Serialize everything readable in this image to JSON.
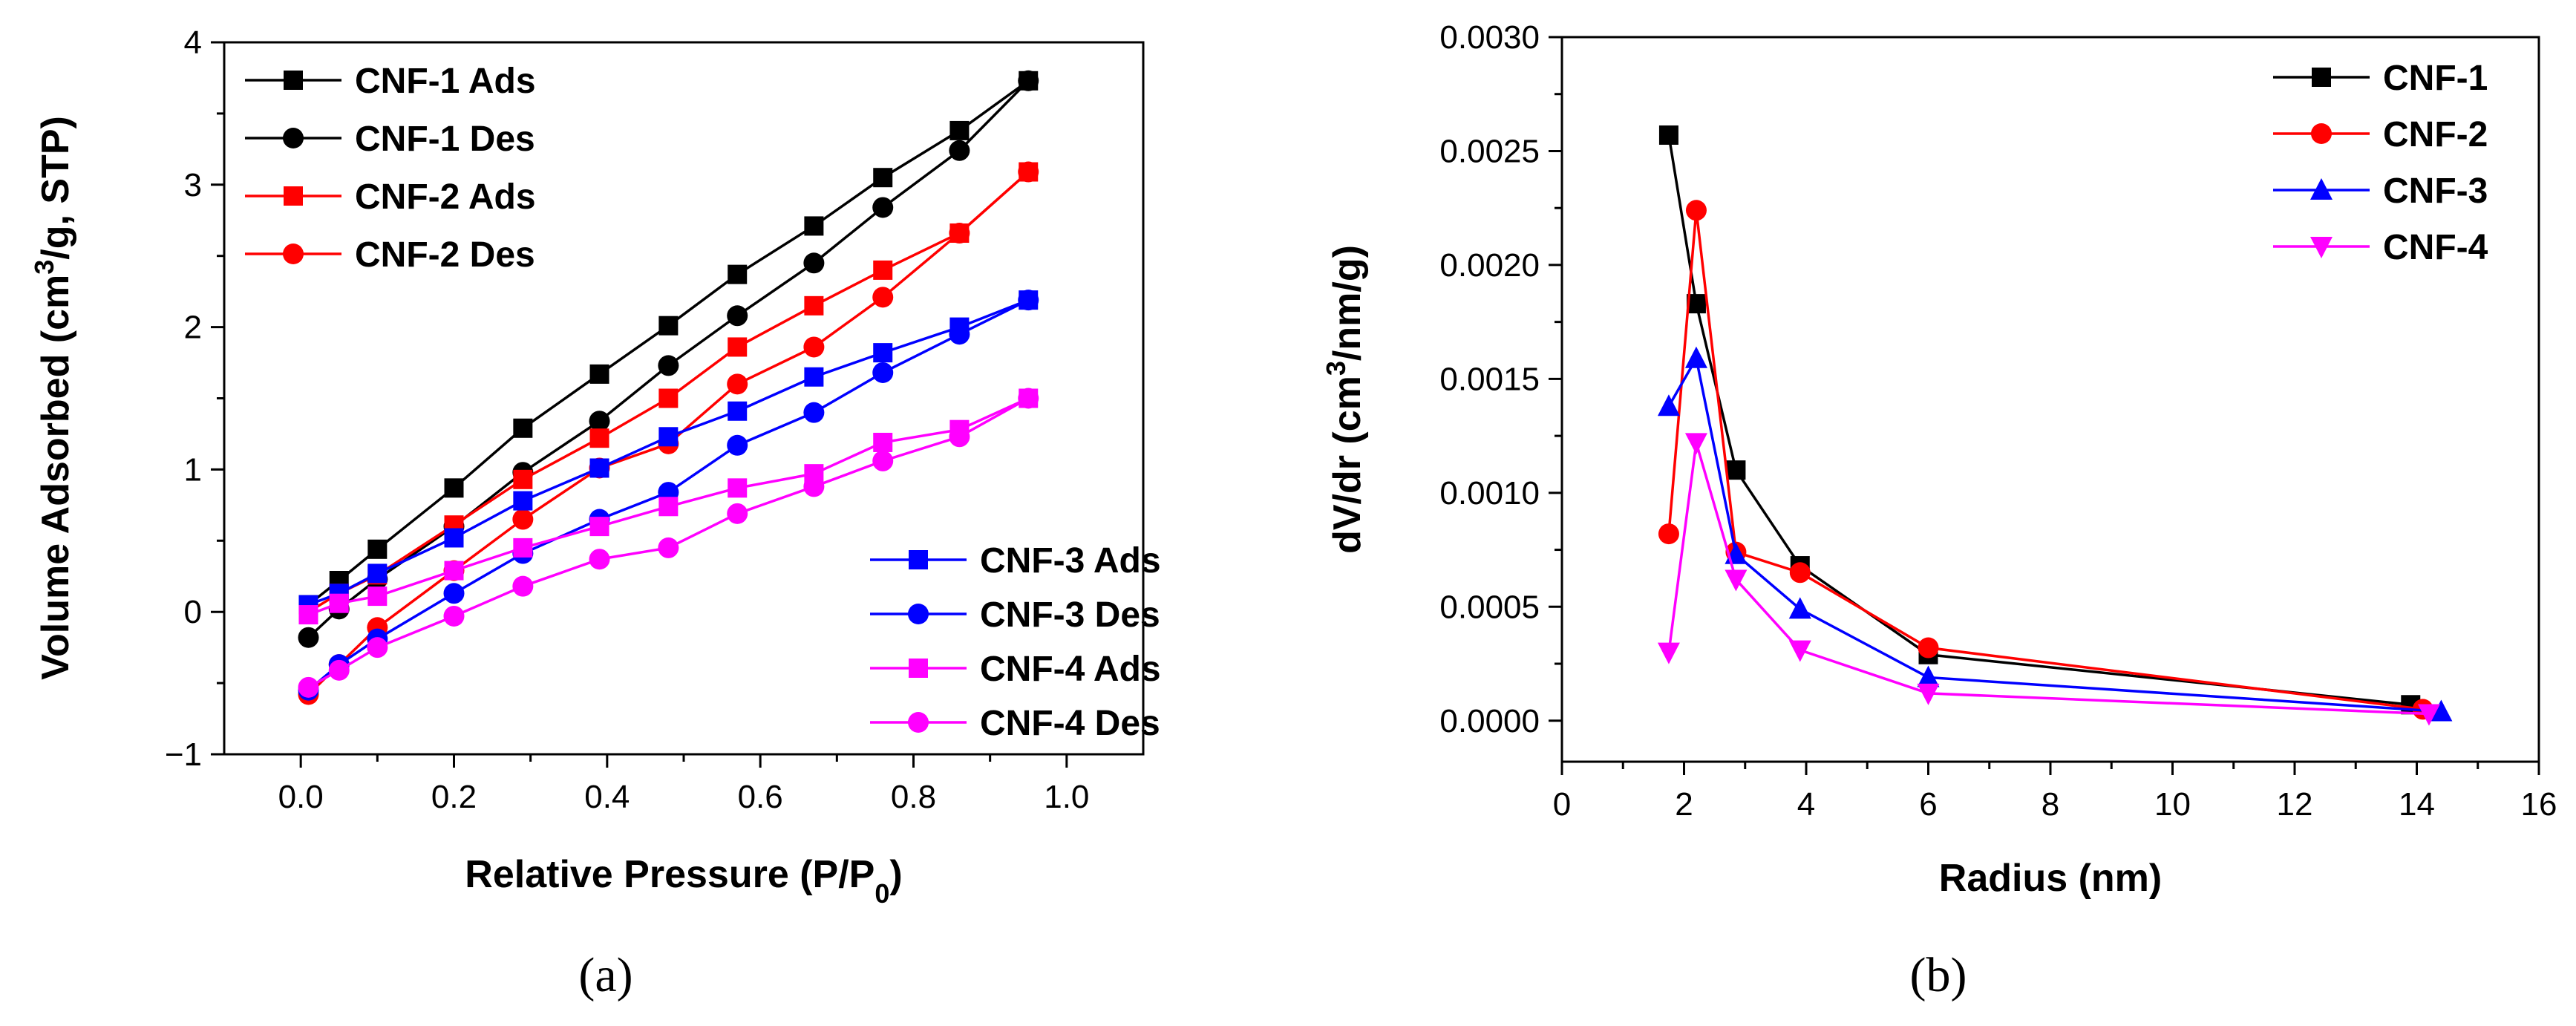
{
  "chart_data": [
    {
      "panel": "a",
      "caption": "(a)",
      "type": "line",
      "xlabel": "Relative Pressure (P/P0)",
      "ylabel": "Volume Adsorbed (cm3/g, STP)",
      "xlim": [
        -0.1,
        1.1
      ],
      "ylim": [
        -1,
        4
      ],
      "xticks": [
        0.0,
        0.2,
        0.4,
        0.6,
        0.8,
        1.0
      ],
      "xtick_labels": [
        "0.0",
        "0.2",
        "0.4",
        "0.6",
        "0.8",
        "1.0"
      ],
      "yticks": [
        -1,
        0,
        1,
        2,
        3,
        4
      ],
      "ytick_labels": [
        "−1",
        "0",
        "1",
        "2",
        "3",
        "4"
      ],
      "series": [
        {
          "name": "CNF-1 Ads",
          "color": "#000000",
          "marker": "square",
          "x": [
            0.01,
            0.05,
            0.1,
            0.2,
            0.29,
            0.39,
            0.48,
            0.57,
            0.67,
            0.76,
            0.86,
            0.95
          ],
          "y": [
            0.05,
            0.22,
            0.44,
            0.87,
            1.29,
            1.67,
            2.01,
            2.37,
            2.71,
            3.05,
            3.38,
            3.73
          ]
        },
        {
          "name": "CNF-1 Des",
          "color": "#000000",
          "marker": "circle",
          "x": [
            0.01,
            0.05,
            0.1,
            0.2,
            0.29,
            0.39,
            0.48,
            0.57,
            0.67,
            0.76,
            0.86,
            0.95
          ],
          "y": [
            -0.18,
            0.02,
            0.23,
            0.6,
            0.98,
            1.34,
            1.73,
            2.08,
            2.45,
            2.84,
            3.24,
            3.73
          ]
        },
        {
          "name": "CNF-2 Ads",
          "color": "#ff0000",
          "marker": "square",
          "x": [
            0.01,
            0.05,
            0.1,
            0.2,
            0.29,
            0.39,
            0.48,
            0.57,
            0.67,
            0.76,
            0.86,
            0.95
          ],
          "y": [
            0.0,
            0.13,
            0.26,
            0.61,
            0.93,
            1.22,
            1.5,
            1.86,
            2.15,
            2.4,
            2.66,
            3.09
          ]
        },
        {
          "name": "CNF-2 Des",
          "color": "#ff0000",
          "marker": "circle",
          "x": [
            0.01,
            0.05,
            0.1,
            0.2,
            0.29,
            0.39,
            0.48,
            0.57,
            0.67,
            0.76,
            0.86,
            0.95
          ],
          "y": [
            -0.58,
            -0.37,
            -0.11,
            0.29,
            0.65,
            1.01,
            1.18,
            1.6,
            1.86,
            2.21,
            2.66,
            3.09
          ]
        },
        {
          "name": "CNF-3 Ads",
          "color": "#0000ff",
          "marker": "square",
          "x": [
            0.01,
            0.05,
            0.1,
            0.2,
            0.29,
            0.39,
            0.48,
            0.57,
            0.67,
            0.76,
            0.86,
            0.95
          ],
          "y": [
            0.05,
            0.13,
            0.27,
            0.52,
            0.78,
            1.01,
            1.23,
            1.41,
            1.65,
            1.82,
            2.0,
            2.19
          ]
        },
        {
          "name": "CNF-3 Des",
          "color": "#0000ff",
          "marker": "circle",
          "x": [
            0.01,
            0.05,
            0.1,
            0.2,
            0.29,
            0.39,
            0.48,
            0.57,
            0.67,
            0.76,
            0.86,
            0.95
          ],
          "y": [
            -0.55,
            -0.37,
            -0.19,
            0.13,
            0.41,
            0.65,
            0.84,
            1.17,
            1.4,
            1.68,
            1.95,
            2.19
          ]
        },
        {
          "name": "CNF-4 Ads",
          "color": "#ff00ff",
          "marker": "square",
          "x": [
            0.01,
            0.05,
            0.1,
            0.2,
            0.29,
            0.39,
            0.48,
            0.57,
            0.67,
            0.76,
            0.86,
            0.95
          ],
          "y": [
            -0.02,
            0.06,
            0.11,
            0.29,
            0.45,
            0.6,
            0.74,
            0.87,
            0.97,
            1.19,
            1.28,
            1.5
          ]
        },
        {
          "name": "CNF-4 Des",
          "color": "#ff00ff",
          "marker": "circle",
          "x": [
            0.01,
            0.05,
            0.1,
            0.2,
            0.29,
            0.39,
            0.48,
            0.57,
            0.67,
            0.76,
            0.86,
            0.95
          ],
          "y": [
            -0.53,
            -0.41,
            -0.25,
            -0.03,
            0.18,
            0.37,
            0.45,
            0.69,
            0.88,
            1.06,
            1.23,
            1.5
          ]
        }
      ],
      "legend_groups": [
        {
          "position": "top-left",
          "entries": [
            "CNF-1 Ads",
            "CNF-1 Des",
            "CNF-2 Ads",
            "CNF-2 Des"
          ]
        },
        {
          "position": "bottom-right",
          "entries": [
            "CNF-3 Ads",
            "CNF-3 Des",
            "CNF-4 Ads",
            "CNF-4 Des"
          ]
        }
      ]
    },
    {
      "panel": "b",
      "caption": "(b)",
      "type": "line",
      "xlabel": "Radius (nm)",
      "ylabel": "dV/dr (cm3/nm/g)",
      "xlim": [
        0,
        16
      ],
      "ylim": [
        -0.00018,
        0.003
      ],
      "xticks": [
        0,
        2,
        4,
        6,
        8,
        10,
        12,
        14,
        16
      ],
      "xtick_labels": [
        "0",
        "2",
        "4",
        "6",
        "8",
        "10",
        "12",
        "14",
        "16"
      ],
      "yticks": [
        0.0,
        0.0005,
        0.001,
        0.0015,
        0.002,
        0.0025,
        0.003
      ],
      "ytick_labels": [
        "0.0000",
        "0.0005",
        "0.0010",
        "0.0015",
        "0.0020",
        "0.0025",
        "0.0030"
      ],
      "series": [
        {
          "name": "CNF-1",
          "color": "#000000",
          "marker": "square",
          "x": [
            1.75,
            2.2,
            2.85,
            3.9,
            6.0,
            13.9
          ],
          "y": [
            0.00257,
            0.00183,
            0.0011,
            0.00068,
            0.00029,
            7e-05
          ]
        },
        {
          "name": "CNF-2",
          "color": "#ff0000",
          "marker": "circle",
          "x": [
            1.75,
            2.2,
            2.85,
            3.9,
            6.0,
            14.1
          ],
          "y": [
            0.00082,
            0.00224,
            0.00074,
            0.00065,
            0.00032,
            5e-05
          ]
        },
        {
          "name": "CNF-3",
          "color": "#0000ff",
          "marker": "triangle-up",
          "x": [
            1.75,
            2.2,
            2.85,
            3.9,
            6.0,
            14.4
          ],
          "y": [
            0.00138,
            0.00159,
            0.00073,
            0.00049,
            0.00019,
            4e-05
          ]
        },
        {
          "name": "CNF-4",
          "color": "#ff00ff",
          "marker": "triangle-down",
          "x": [
            1.75,
            2.2,
            2.85,
            3.9,
            6.0,
            14.2
          ],
          "y": [
            0.0003,
            0.00122,
            0.00062,
            0.00031,
            0.00012,
            3e-05
          ]
        }
      ],
      "legend_groups": [
        {
          "position": "top-right",
          "entries": [
            "CNF-1",
            "CNF-2",
            "CNF-3",
            "CNF-4"
          ]
        }
      ]
    }
  ]
}
